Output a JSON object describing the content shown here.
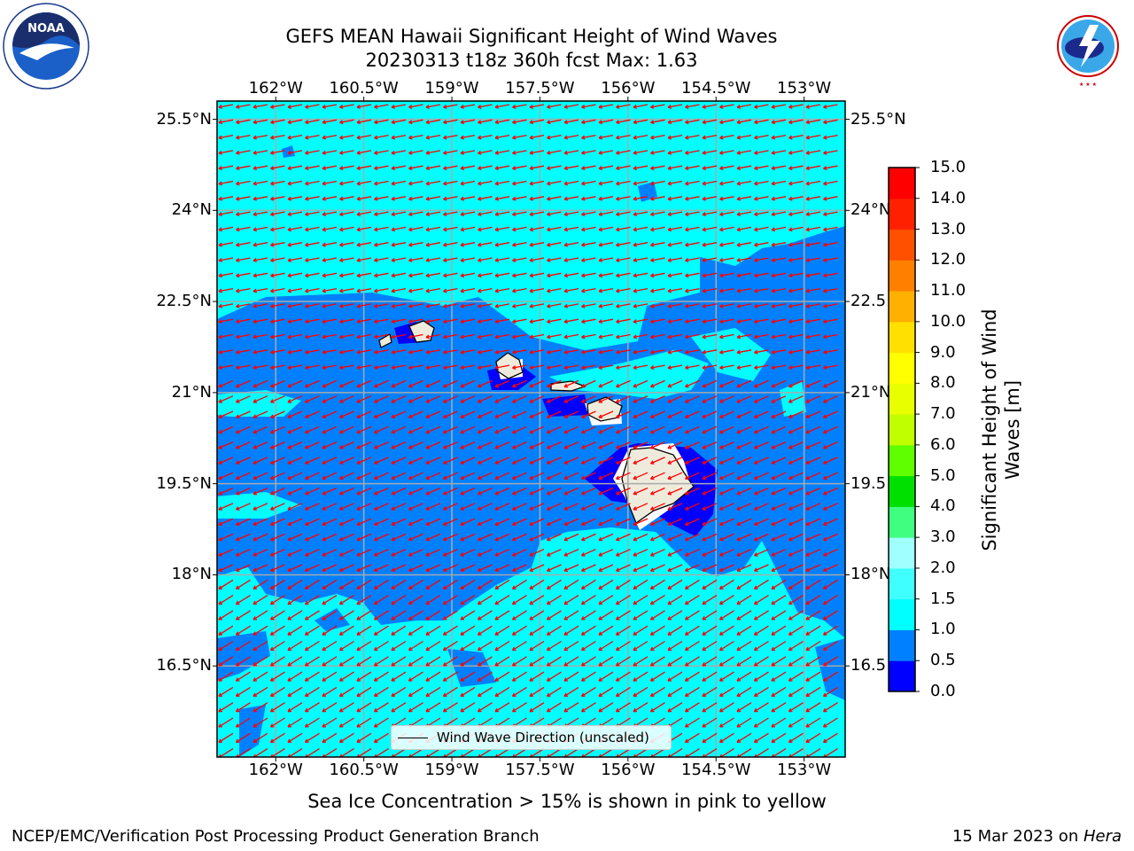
{
  "title": {
    "line1": "GEFS MEAN Hawaii Significant Height of Wind Waves",
    "line2": "20230313 t18z 360h fcst   Max: 1.63"
  },
  "map": {
    "lon_range": [
      -163.0,
      -152.3
    ],
    "lat_range": [
      15.0,
      25.8
    ],
    "lon_ticks": [
      -162,
      -160.5,
      -159,
      -157.5,
      -156,
      -154.5,
      -153
    ],
    "lon_labels": [
      "162°W",
      "160.5°W",
      "159°W",
      "157.5°W",
      "156°W",
      "154.5°W",
      "153°W"
    ],
    "lat_ticks": [
      16.5,
      18,
      19.5,
      21,
      22.5,
      24,
      25.5
    ],
    "lat_labels": [
      "16.5°N",
      "18°N",
      "19.5°N",
      "21°N",
      "22.5°N",
      "24°N",
      "25.5°N"
    ],
    "lat_labels_right": [
      "16.5",
      "18°N",
      "19.5",
      "21°N",
      "22.5",
      "24°N",
      "25.5°N"
    ],
    "wind_direction": "from east-northeast",
    "fill_colors": {
      "band_0_0.5": "#0000ff",
      "band_0.5_1.0": "#0080ff",
      "band_1.0_1.5": "#00ffff",
      "land": "#efebdc",
      "arrows": "#ff0000"
    }
  },
  "legend": {
    "label": "Wind Wave Direction (unscaled)"
  },
  "colorbar": {
    "title": "Significant Height of Wind Waves [m]",
    "ticks": [
      "0.0",
      "0.5",
      "1.0",
      "1.5",
      "2.0",
      "3.0",
      "4.0",
      "5.0",
      "6.0",
      "7.0",
      "8.0",
      "9.0",
      "10.0",
      "11.0",
      "12.0",
      "13.0",
      "14.0",
      "15.0"
    ],
    "colors": [
      "#0000ff",
      "#0080ff",
      "#00ffff",
      "#40ffff",
      "#a0ffff",
      "#40ff80",
      "#00e000",
      "#60ff00",
      "#c0ff00",
      "#e8ff00",
      "#ffff00",
      "#ffe000",
      "#ffb000",
      "#ff8000",
      "#ff5000",
      "#ff2000",
      "#ff0000"
    ]
  },
  "footer": {
    "note": "Sea Ice Concentration > 15% is shown in pink to yellow",
    "left": "NCEP/EMC/Verification Post Processing Product Generation Branch",
    "right_date": "15 Mar 2023 on ",
    "right_host": "Hera"
  },
  "logos": {
    "noaa": "NOAA",
    "nws": "NATIONAL WEATHER SERVICE"
  }
}
